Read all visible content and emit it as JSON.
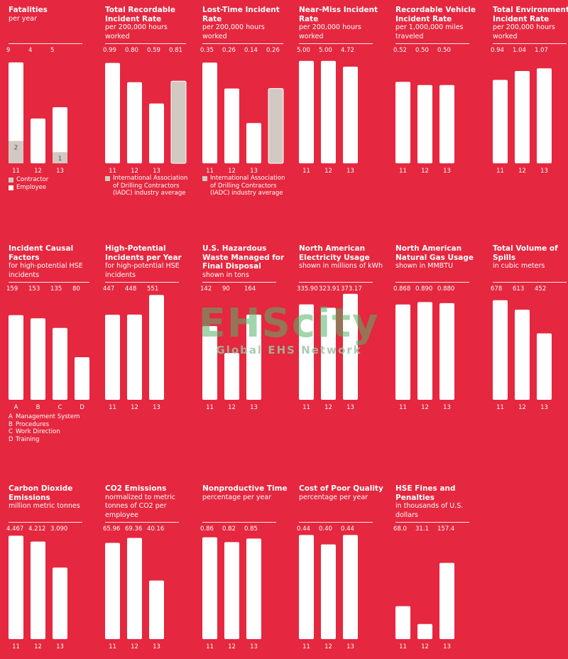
{
  "watermark": {
    "main": "EHScity",
    "sub": "Global EHS Network"
  },
  "colors": {
    "background": "#e5273f",
    "bar": "#ffffff",
    "benchmark": "#d2c9c3",
    "contractor": "#d2c9c3"
  },
  "chart_data": [
    {
      "id": "fatalities",
      "type": "bar",
      "title": "Fatalities",
      "subtitle": "per year",
      "categories": [
        "11",
        "12",
        "13"
      ],
      "labels": [
        "9",
        "4",
        "5"
      ],
      "values": [
        9,
        4,
        5
      ],
      "stack": {
        "name": "Contractor",
        "values": [
          2,
          null,
          1
        ],
        "labels": [
          "2",
          "",
          "1"
        ]
      },
      "legend": [
        {
          "label": "Contractor",
          "color": "#d2c9c3"
        },
        {
          "label": "Employee",
          "color": "#ffffff"
        }
      ],
      "ylim": [
        0,
        9.5
      ]
    },
    {
      "id": "trir",
      "type": "bar",
      "title": "Total Recordable Incident Rate",
      "subtitle": "per 200,000 hours worked",
      "categories": [
        "11",
        "12",
        "13"
      ],
      "labels": [
        "0.99",
        "0.80",
        "0.59",
        "0.81"
      ],
      "values": [
        0.99,
        0.8,
        0.59
      ],
      "benchmark": {
        "label": "International Association of Drilling Contractors (IADC) industry average",
        "value": 0.81
      },
      "ylim": [
        0,
        1.05
      ]
    },
    {
      "id": "ltir",
      "type": "bar",
      "title": "Lost-Time Incident Rate",
      "subtitle": "per 200,000 hours worked",
      "categories": [
        "11",
        "12",
        "13"
      ],
      "labels": [
        "0.35",
        "0.26",
        "0.14",
        "0.26"
      ],
      "values": [
        0.35,
        0.26,
        0.14
      ],
      "benchmark": {
        "label": "International Association of Drilling Contractors (IADC) industry average",
        "value": 0.26
      },
      "ylim": [
        0,
        0.37
      ]
    },
    {
      "id": "near-miss",
      "type": "bar",
      "title": "Near-Miss Incident Rate",
      "subtitle": "per 200,000 hours worked",
      "categories": [
        "11",
        "12",
        "13"
      ],
      "labels": [
        "5.00",
        "5.00",
        "4.72"
      ],
      "values": [
        5.0,
        5.0,
        4.72
      ],
      "ylim": [
        0,
        5.2
      ]
    },
    {
      "id": "vehicle",
      "type": "bar",
      "title": "Recordable Vehicle Incident Rate",
      "subtitle": "per 1,000,000 miles traveled",
      "categories": [
        "11",
        "12",
        "13"
      ],
      "labels": [
        "0.52",
        "0.50",
        "0.50"
      ],
      "values": [
        0.52,
        0.5,
        0.5
      ],
      "ylim": [
        0,
        0.68
      ]
    },
    {
      "id": "environmental",
      "type": "bar",
      "title": "Total Environmental Incident Rate",
      "subtitle": "per 200,000 hours worked",
      "categories": [
        "11",
        "12",
        "13"
      ],
      "labels": [
        "0.94",
        "1.04",
        "1.07"
      ],
      "values": [
        0.94,
        1.04,
        1.07
      ],
      "ylim": [
        0,
        1.2
      ]
    },
    {
      "id": "causal",
      "type": "bar",
      "title": "Incident Causal Factors",
      "subtitle": "for high-potential HSE incidents",
      "categories": [
        "A",
        "B",
        "C",
        "D"
      ],
      "labels": [
        "159",
        "153",
        "135",
        "80"
      ],
      "values": [
        159,
        153,
        135,
        80
      ],
      "key": [
        {
          "k": "A",
          "v": "Management System"
        },
        {
          "k": "B",
          "v": "Procedures"
        },
        {
          "k": "C",
          "v": "Work Direction"
        },
        {
          "k": "D",
          "v": "Training"
        }
      ],
      "ylim": [
        0,
        200
      ]
    },
    {
      "id": "high-potential",
      "type": "bar",
      "title": "High-Potential Incidents per Year",
      "subtitle": "for high-potential HSE incidents",
      "categories": [
        "11",
        "12",
        "13"
      ],
      "labels": [
        "447",
        "448",
        "551"
      ],
      "values": [
        447,
        448,
        551
      ],
      "ylim": [
        0,
        560
      ]
    },
    {
      "id": "hazardous-waste",
      "type": "bar",
      "title": "U.S. Hazardous Waste Managed for Final Disposal",
      "subtitle": "shown in tons",
      "categories": [
        "11",
        "12",
        "13"
      ],
      "labels": [
        "142",
        "90",
        "164"
      ],
      "values": [
        142,
        90,
        164
      ],
      "ylim": [
        0,
        205
      ]
    },
    {
      "id": "electricity",
      "type": "bar",
      "title": "North American Electricity Usage",
      "subtitle": "shown in millions of kWh",
      "categories": [
        "11",
        "12",
        "13"
      ],
      "labels": [
        "335.90",
        "323.91",
        "373.17"
      ],
      "values": [
        335.9,
        323.91,
        373.17
      ],
      "ylim": [
        0,
        375
      ]
    },
    {
      "id": "natural-gas",
      "type": "bar",
      "title": "North American Natural Gas Usage",
      "subtitle": "shown in MMBTU",
      "categories": [
        "11",
        "12",
        "13"
      ],
      "labels": [
        "0.868",
        "0.890",
        "0.880"
      ],
      "values": [
        0.868,
        0.89,
        0.88
      ],
      "ylim": [
        0,
        0.97
      ]
    },
    {
      "id": "spills",
      "type": "bar",
      "title": "Total Volume of Spills",
      "subtitle": "in cubic meters",
      "categories": [
        "11",
        "12",
        "13"
      ],
      "labels": [
        "678",
        "613",
        "452"
      ],
      "values": [
        678,
        613,
        452
      ],
      "ylim": [
        0,
        725
      ]
    },
    {
      "id": "co2",
      "type": "bar",
      "title": "Carbon Dioxide Emissions",
      "subtitle": "million metric tonnes",
      "categories": [
        "11",
        "12",
        "13"
      ],
      "labels": [
        "4.467",
        "4.212",
        "3.090"
      ],
      "values": [
        4.467,
        4.212,
        3.09
      ],
      "ylim": [
        0,
        4.6
      ]
    },
    {
      "id": "co2-normalized",
      "type": "bar",
      "title": "CO2 Emissions",
      "subtitle": "normalized to metric tonnes of CO2 per employee",
      "categories": [
        "11",
        "12",
        "13"
      ],
      "labels": [
        "65.96",
        "69.36",
        "40.16"
      ],
      "values": [
        65.96,
        69.36,
        40.16
      ],
      "ylim": [
        0,
        73
      ]
    },
    {
      "id": "nonproductive",
      "type": "bar",
      "title": "Nonproductive Time",
      "subtitle": "percentage per year",
      "categories": [
        "11",
        "12",
        "13"
      ],
      "labels": [
        "0.86",
        "0.82",
        "0.85"
      ],
      "values": [
        0.86,
        0.82,
        0.85
      ],
      "ylim": [
        0,
        0.9
      ]
    },
    {
      "id": "poor-quality",
      "type": "bar",
      "title": "Cost of Poor Quality",
      "subtitle": "percentage per year",
      "categories": [
        "11",
        "12",
        "13"
      ],
      "labels": [
        "0.44",
        "0.40",
        "0.44"
      ],
      "values": [
        0.44,
        0.4,
        0.44
      ],
      "ylim": [
        0,
        0.45
      ]
    },
    {
      "id": "fines",
      "type": "bar",
      "title": "HSE Fines and Penalties",
      "subtitle": "in thousands of U.S. dollars",
      "categories": [
        "11",
        "12",
        "13"
      ],
      "labels": [
        "68.0",
        "31.1",
        "157.4"
      ],
      "values": [
        68.0,
        31.1,
        157.4
      ],
      "ylim": [
        0,
        220
      ]
    }
  ]
}
